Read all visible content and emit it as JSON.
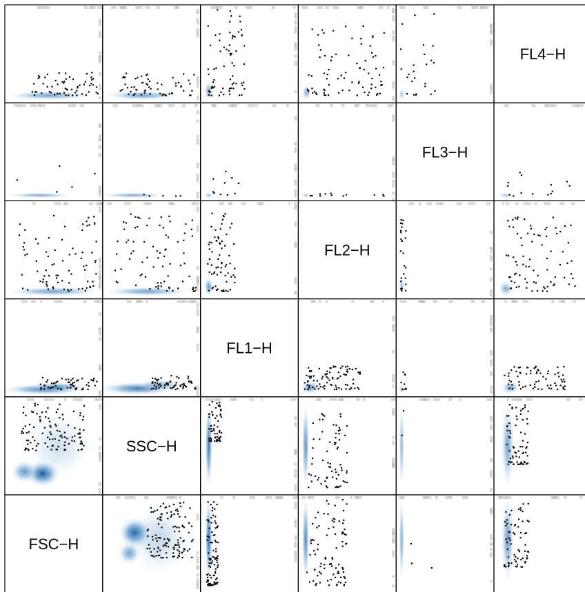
{
  "chart_data": {
    "type": "scatter",
    "subtype": "pairs-smoothscatter",
    "variables": [
      "FSC-H",
      "SSC-H",
      "FL1-H",
      "FL2-H",
      "FL3-H",
      "FL4-H"
    ],
    "diagonal_labels": [
      "FSC−H",
      "SSC−H",
      "FL1−H",
      "FL2−H",
      "FL3−H",
      "FL4−H"
    ],
    "layout": "FSC-H bottom-left, FL4-H top-right",
    "density_color": "#08519c",
    "density_light_color": "#c6dbef",
    "rug_color": "#bdbdbd",
    "point_color": "#000000",
    "panels": [
      {
        "x": "SSC-H",
        "y": "FSC-H",
        "density": [
          {
            "cx": 0.32,
            "cy": 0.62,
            "rx": 0.17,
            "ry": 0.16,
            "w": 0.95
          },
          {
            "cx": 0.26,
            "cy": 0.4,
            "rx": 0.12,
            "ry": 0.12,
            "w": 0.55
          },
          {
            "cx": 0.58,
            "cy": 0.55,
            "rx": 0.32,
            "ry": 0.38,
            "w": 0.25
          }
        ],
        "n_points": 120,
        "point_region": [
          0.45,
          0.95,
          0.35,
          0.95
        ]
      },
      {
        "x": "FL1-H",
        "y": "FSC-H",
        "density": [
          {
            "cx": 0.06,
            "cy": 0.55,
            "rx": 0.04,
            "ry": 0.45,
            "w": 0.85
          }
        ],
        "n_points": 90,
        "point_region": [
          0.04,
          0.16,
          0.05,
          0.98
        ]
      },
      {
        "x": "FL2-H",
        "y": "FSC-H",
        "density": [
          {
            "cx": 0.05,
            "cy": 0.55,
            "rx": 0.04,
            "ry": 0.45,
            "w": 0.7
          }
        ],
        "n_points": 90,
        "point_region": [
          0.06,
          0.5,
          0.05,
          0.98
        ]
      },
      {
        "x": "FL3-H",
        "y": "FSC-H",
        "density": [
          {
            "cx": 0.03,
            "cy": 0.55,
            "rx": 0.03,
            "ry": 0.45,
            "w": 0.5
          }
        ],
        "n_points": 3,
        "point_region": [
          0.02,
          0.4,
          0.2,
          0.9
        ]
      },
      {
        "x": "FL4-H",
        "y": "FSC-H",
        "density": [
          {
            "cx": 0.12,
            "cy": 0.55,
            "rx": 0.07,
            "ry": 0.45,
            "w": 0.6
          }
        ],
        "n_points": 70,
        "point_region": [
          0.08,
          0.35,
          0.25,
          0.98
        ]
      },
      {
        "x": "FSC-H",
        "y": "SSC-H",
        "density": [
          {
            "cx": 0.38,
            "cy": 0.2,
            "rx": 0.18,
            "ry": 0.14,
            "w": 0.95
          },
          {
            "cx": 0.18,
            "cy": 0.22,
            "rx": 0.14,
            "ry": 0.12,
            "w": 0.6
          },
          {
            "cx": 0.55,
            "cy": 0.5,
            "rx": 0.35,
            "ry": 0.35,
            "w": 0.2
          }
        ],
        "n_points": 110,
        "point_region": [
          0.15,
          0.85,
          0.45,
          0.98
        ]
      },
      {
        "x": "FL1-H",
        "y": "SSC-H",
        "density": [
          {
            "cx": 0.06,
            "cy": 0.5,
            "rx": 0.04,
            "ry": 0.45,
            "w": 0.8
          }
        ],
        "n_points": 60,
        "point_region": [
          0.06,
          0.2,
          0.55,
          0.98
        ]
      },
      {
        "x": "FL2-H",
        "y": "SSC-H",
        "density": [
          {
            "cx": 0.05,
            "cy": 0.5,
            "rx": 0.04,
            "ry": 0.45,
            "w": 0.65
          }
        ],
        "n_points": 70,
        "point_region": [
          0.08,
          0.5,
          0.05,
          0.98
        ]
      },
      {
        "x": "FL3-H",
        "y": "SSC-H",
        "density": [
          {
            "cx": 0.03,
            "cy": 0.5,
            "rx": 0.03,
            "ry": 0.45,
            "w": 0.45
          }
        ],
        "n_points": 2,
        "point_region": [
          0.02,
          0.1,
          0.6,
          0.95
        ]
      },
      {
        "x": "FL4-H",
        "y": "SSC-H",
        "density": [
          {
            "cx": 0.12,
            "cy": 0.5,
            "rx": 0.07,
            "ry": 0.45,
            "w": 0.55
          }
        ],
        "n_points": 70,
        "point_region": [
          0.1,
          0.35,
          0.3,
          0.95
        ]
      },
      {
        "x": "FSC-H",
        "y": "FL1-H",
        "density": [
          {
            "cx": 0.4,
            "cy": 0.05,
            "rx": 0.45,
            "ry": 0.06,
            "w": 0.7
          },
          {
            "cx": 0.55,
            "cy": 0.08,
            "rx": 0.3,
            "ry": 0.05,
            "w": 0.5
          }
        ],
        "n_points": 60,
        "point_region": [
          0.35,
          0.98,
          0.05,
          0.18
        ]
      },
      {
        "x": "SSC-H",
        "y": "FL1-H",
        "density": [
          {
            "cx": 0.35,
            "cy": 0.06,
            "rx": 0.4,
            "ry": 0.07,
            "w": 0.75
          },
          {
            "cx": 0.6,
            "cy": 0.1,
            "rx": 0.25,
            "ry": 0.06,
            "w": 0.45
          }
        ],
        "n_points": 60,
        "point_region": [
          0.5,
          0.98,
          0.05,
          0.2
        ]
      },
      {
        "x": "FL2-H",
        "y": "FL1-H",
        "density": [
          {
            "cx": 0.1,
            "cy": 0.07,
            "rx": 0.1,
            "ry": 0.07,
            "w": 0.6
          }
        ],
        "n_points": 90,
        "point_region": [
          0.04,
          0.65,
          0.05,
          0.3
        ]
      },
      {
        "x": "FL3-H",
        "y": "FL1-H",
        "density": [
          {
            "cx": 0.03,
            "cy": 0.05,
            "rx": 0.03,
            "ry": 0.05,
            "w": 0.4
          }
        ],
        "n_points": 10,
        "point_region": [
          0.02,
          0.08,
          0.05,
          0.3
        ]
      },
      {
        "x": "FL4-H",
        "y": "FL1-H",
        "density": [
          {
            "cx": 0.15,
            "cy": 0.07,
            "rx": 0.1,
            "ry": 0.07,
            "w": 0.55
          }
        ],
        "n_points": 70,
        "point_region": [
          0.08,
          0.75,
          0.05,
          0.3
        ]
      },
      {
        "x": "FSC-H",
        "y": "FL2-H",
        "density": [
          {
            "cx": 0.5,
            "cy": 0.05,
            "rx": 0.5,
            "ry": 0.05,
            "w": 0.55
          }
        ],
        "n_points": 80,
        "point_region": [
          0.1,
          0.98,
          0.05,
          0.9
        ]
      },
      {
        "x": "SSC-H",
        "y": "FL2-H",
        "density": [
          {
            "cx": 0.45,
            "cy": 0.05,
            "rx": 0.45,
            "ry": 0.05,
            "w": 0.55
          }
        ],
        "n_points": 80,
        "point_region": [
          0.1,
          0.98,
          0.05,
          0.9
        ]
      },
      {
        "x": "FL1-H",
        "y": "FL2-H",
        "density": [
          {
            "cx": 0.06,
            "cy": 0.1,
            "rx": 0.05,
            "ry": 0.1,
            "w": 0.6
          }
        ],
        "n_points": 70,
        "point_region": [
          0.04,
          0.35,
          0.05,
          0.9
        ]
      },
      {
        "x": "FL3-H",
        "y": "FL2-H",
        "density": [
          {
            "cx": 0.03,
            "cy": 0.1,
            "rx": 0.03,
            "ry": 0.1,
            "w": 0.4
          }
        ],
        "n_points": 25,
        "point_region": [
          0.02,
          0.08,
          0.05,
          0.9
        ]
      },
      {
        "x": "FL4-H",
        "y": "FL2-H",
        "density": [
          {
            "cx": 0.1,
            "cy": 0.08,
            "rx": 0.08,
            "ry": 0.08,
            "w": 0.5
          }
        ],
        "n_points": 80,
        "point_region": [
          0.08,
          0.85,
          0.05,
          0.9
        ]
      },
      {
        "x": "FSC-H",
        "y": "FL3-H",
        "density": [
          {
            "cx": 0.35,
            "cy": 0.03,
            "rx": 0.35,
            "ry": 0.03,
            "w": 0.5
          }
        ],
        "n_points": 5,
        "point_region": [
          0.1,
          0.98,
          0.02,
          0.35
        ]
      },
      {
        "x": "SSC-H",
        "y": "FL3-H",
        "density": [
          {
            "cx": 0.3,
            "cy": 0.03,
            "rx": 0.35,
            "ry": 0.03,
            "w": 0.5
          }
        ],
        "n_points": 5,
        "point_region": [
          0.3,
          0.98,
          0.02,
          0.05
        ]
      },
      {
        "x": "FL1-H",
        "y": "FL3-H",
        "density": [
          {
            "cx": 0.06,
            "cy": 0.03,
            "rx": 0.05,
            "ry": 0.03,
            "w": 0.4
          }
        ],
        "n_points": 10,
        "point_region": [
          0.04,
          0.4,
          0.02,
          0.3
        ]
      },
      {
        "x": "FL2-H",
        "y": "FL3-H",
        "density": [
          {
            "cx": 0.05,
            "cy": 0.03,
            "rx": 0.05,
            "ry": 0.03,
            "w": 0.35
          }
        ],
        "n_points": 12,
        "point_region": [
          0.1,
          0.9,
          0.02,
          0.06
        ]
      },
      {
        "x": "FL4-H",
        "y": "FL3-H",
        "density": [
          {
            "cx": 0.1,
            "cy": 0.03,
            "rx": 0.08,
            "ry": 0.03,
            "w": 0.35
          }
        ],
        "n_points": 14,
        "point_region": [
          0.08,
          0.85,
          0.02,
          0.28
        ]
      },
      {
        "x": "FSC-H",
        "y": "FL4-H",
        "density": [
          {
            "cx": 0.45,
            "cy": 0.05,
            "rx": 0.45,
            "ry": 0.05,
            "w": 0.55
          }
        ],
        "n_points": 60,
        "point_region": [
          0.25,
          0.98,
          0.05,
          0.3
        ]
      },
      {
        "x": "SSC-H",
        "y": "FL4-H",
        "density": [
          {
            "cx": 0.4,
            "cy": 0.05,
            "rx": 0.4,
            "ry": 0.05,
            "w": 0.55
          }
        ],
        "n_points": 60,
        "point_region": [
          0.15,
          0.98,
          0.05,
          0.3
        ]
      },
      {
        "x": "FL1-H",
        "y": "FL4-H",
        "density": [
          {
            "cx": 0.06,
            "cy": 0.1,
            "rx": 0.05,
            "ry": 0.1,
            "w": 0.5
          }
        ],
        "n_points": 70,
        "point_region": [
          0.05,
          0.45,
          0.05,
          0.98
        ]
      },
      {
        "x": "FL2-H",
        "y": "FL4-H",
        "density": [
          {
            "cx": 0.06,
            "cy": 0.08,
            "rx": 0.05,
            "ry": 0.08,
            "w": 0.5
          }
        ],
        "n_points": 80,
        "point_region": [
          0.06,
          0.9,
          0.05,
          0.8
        ]
      },
      {
        "x": "FL3-H",
        "y": "FL4-H",
        "density": [
          {
            "cx": 0.03,
            "cy": 0.06,
            "rx": 0.03,
            "ry": 0.06,
            "w": 0.35
          }
        ],
        "n_points": 25,
        "point_region": [
          0.02,
          0.4,
          0.05,
          0.95
        ]
      }
    ]
  }
}
